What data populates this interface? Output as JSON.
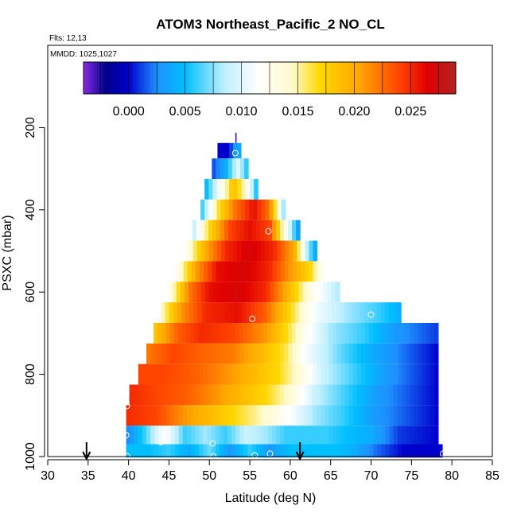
{
  "chart_data": {
    "type": "heatmap",
    "title": "ATOM3 Northeast_Pacific_2 NO_CL",
    "notes": {
      "flights": "Flts: 12,13",
      "dates": "MMDD: 1025,1027"
    },
    "xlabel": "Latitude (deg N)",
    "ylabel": "PSXC (mbar)",
    "xlim": [
      30,
      85
    ],
    "ylim": [
      1000,
      0
    ],
    "x_ticks": [
      "30",
      "35",
      "40",
      "45",
      "50",
      "55",
      "60",
      "65",
      "70",
      "75",
      "80",
      "85"
    ],
    "y_ticks": [
      "200",
      "400",
      "600",
      "800",
      "1000"
    ],
    "colorbar": {
      "range": [
        -0.004,
        0.029
      ],
      "tick_values": [
        0.0,
        0.005,
        0.01,
        0.015,
        0.02,
        0.025
      ],
      "tick_labels": [
        "0.000",
        "0.005",
        "0.010",
        "0.015",
        "0.020",
        "0.025"
      ],
      "bands": [
        -0.0025,
        0.0,
        0.0025,
        0.005,
        0.0075,
        0.01,
        0.0125,
        0.015,
        0.0175,
        0.02,
        0.0225,
        0.025,
        0.0275
      ],
      "colors": [
        "#8a2be2",
        "#00008b",
        "#0000cd",
        "#1e90ff",
        "#00bfff",
        "#bfefff",
        "#ffffff",
        "#fffacd",
        "#ffd700",
        "#ffa500",
        "#ff4500",
        "#e00000",
        "#b22222"
      ]
    },
    "rows": [
      {
        "p": 225,
        "lat_min": 53.2,
        "lat_max": 53.3,
        "profile": [
          [
            53.2,
            -0.003
          ],
          [
            53.3,
            -0.003
          ]
        ]
      },
      {
        "p": 250,
        "lat_min": 51.0,
        "lat_max": 53.9,
        "profile": [
          [
            51.0,
            0.0
          ],
          [
            52.5,
            0.0
          ],
          [
            53.0,
            0.003
          ],
          [
            53.9,
            0.004
          ]
        ]
      },
      {
        "p": 300,
        "lat_min": 50.3,
        "lat_max": 54.8,
        "profile": [
          [
            50.3,
            0.001
          ],
          [
            52.0,
            0.004
          ],
          [
            53.5,
            0.01
          ],
          [
            54.8,
            0.005
          ]
        ]
      },
      {
        "p": 350,
        "lat_min": 49.4,
        "lat_max": 56.0,
        "profile": [
          [
            49.4,
            0.004
          ],
          [
            51.5,
            0.012
          ],
          [
            53.0,
            0.019
          ],
          [
            54.5,
            0.014
          ],
          [
            56.0,
            0.004
          ]
        ]
      },
      {
        "p": 400,
        "lat_min": 48.9,
        "lat_max": 59.4,
        "profile": [
          [
            48.9,
            0.005
          ],
          [
            51.0,
            0.016
          ],
          [
            53.0,
            0.022
          ],
          [
            55.5,
            0.026
          ],
          [
            57.5,
            0.022
          ],
          [
            59.4,
            0.006
          ]
        ]
      },
      {
        "p": 450,
        "lat_min": 47.9,
        "lat_max": 61.2,
        "profile": [
          [
            47.9,
            0.008
          ],
          [
            50.0,
            0.017
          ],
          [
            52.5,
            0.024
          ],
          [
            55.0,
            0.026
          ],
          [
            57.5,
            0.024
          ],
          [
            59.5,
            0.012
          ],
          [
            61.2,
            0.002
          ]
        ]
      },
      {
        "p": 500,
        "lat_min": 47.0,
        "lat_max": 63.3,
        "profile": [
          [
            47.0,
            0.012
          ],
          [
            49.5,
            0.02
          ],
          [
            52.0,
            0.025
          ],
          [
            55.0,
            0.027
          ],
          [
            58.0,
            0.025
          ],
          [
            60.5,
            0.02
          ],
          [
            62.0,
            0.009
          ],
          [
            63.3,
            0.003
          ]
        ]
      },
      {
        "p": 550,
        "lat_min": 45.8,
        "lat_max": 64.3,
        "profile": [
          [
            45.8,
            0.012
          ],
          [
            48.5,
            0.021
          ],
          [
            51.0,
            0.026
          ],
          [
            54.5,
            0.027
          ],
          [
            57.5,
            0.025
          ],
          [
            60.0,
            0.021
          ],
          [
            62.5,
            0.017
          ],
          [
            64.3,
            0.011
          ]
        ]
      },
      {
        "p": 600,
        "lat_min": 44.9,
        "lat_max": 66.1,
        "profile": [
          [
            44.9,
            0.012
          ],
          [
            47.5,
            0.022
          ],
          [
            50.0,
            0.026
          ],
          [
            53.5,
            0.027
          ],
          [
            57.0,
            0.025
          ],
          [
            59.5,
            0.02
          ],
          [
            62.5,
            0.013
          ],
          [
            66.1,
            0.008
          ]
        ]
      },
      {
        "p": 650,
        "lat_min": 44.0,
        "lat_max": 73.7,
        "profile": [
          [
            44.0,
            0.014
          ],
          [
            46.5,
            0.021
          ],
          [
            49.5,
            0.025
          ],
          [
            53.5,
            0.026
          ],
          [
            57.0,
            0.023
          ],
          [
            60.0,
            0.017
          ],
          [
            63.0,
            0.011
          ],
          [
            67.0,
            0.008
          ],
          [
            71.0,
            0.006
          ],
          [
            73.7,
            0.004
          ]
        ]
      },
      {
        "p": 700,
        "lat_min": 43.1,
        "lat_max": 78.3,
        "profile": [
          [
            43.1,
            0.018
          ],
          [
            46.0,
            0.023
          ],
          [
            49.0,
            0.025
          ],
          [
            53.0,
            0.024
          ],
          [
            57.0,
            0.021
          ],
          [
            60.0,
            0.016
          ],
          [
            62.0,
            0.012
          ],
          [
            65.0,
            0.008
          ],
          [
            69.0,
            0.006
          ],
          [
            73.0,
            0.003
          ],
          [
            78.3,
            0.001
          ]
        ]
      },
      {
        "p": 750,
        "lat_min": 42.2,
        "lat_max": 78.3,
        "profile": [
          [
            42.2,
            0.022
          ],
          [
            45.5,
            0.024
          ],
          [
            49.0,
            0.023
          ],
          [
            53.0,
            0.022
          ],
          [
            56.5,
            0.019
          ],
          [
            59.5,
            0.016
          ],
          [
            62.0,
            0.011
          ],
          [
            66.0,
            0.007
          ],
          [
            70.0,
            0.004
          ],
          [
            74.0,
            0.002
          ],
          [
            78.3,
            0.0
          ]
        ]
      },
      {
        "p": 800,
        "lat_min": 41.2,
        "lat_max": 78.3,
        "profile": [
          [
            41.2,
            0.024
          ],
          [
            44.5,
            0.024
          ],
          [
            48.5,
            0.023
          ],
          [
            52.5,
            0.021
          ],
          [
            55.5,
            0.019
          ],
          [
            58.5,
            0.017
          ],
          [
            61.0,
            0.014
          ],
          [
            64.0,
            0.009
          ],
          [
            68.0,
            0.006
          ],
          [
            72.0,
            0.003
          ],
          [
            78.3,
            0.0
          ]
        ]
      },
      {
        "p": 850,
        "lat_min": 40.1,
        "lat_max": 78.3,
        "profile": [
          [
            40.1,
            0.025
          ],
          [
            43.5,
            0.024
          ],
          [
            47.5,
            0.023
          ],
          [
            51.0,
            0.021
          ],
          [
            54.0,
            0.019
          ],
          [
            57.0,
            0.017
          ],
          [
            60.0,
            0.014
          ],
          [
            63.0,
            0.009
          ],
          [
            67.0,
            0.006
          ],
          [
            71.0,
            0.003
          ],
          [
            78.3,
            0.0
          ]
        ]
      },
      {
        "p": 900,
        "lat_min": 39.7,
        "lat_max": 78.3,
        "profile": [
          [
            39.7,
            0.025
          ],
          [
            43.5,
            0.024
          ],
          [
            47.0,
            0.021
          ],
          [
            50.0,
            0.019
          ],
          [
            53.0,
            0.017
          ],
          [
            56.0,
            0.015
          ],
          [
            59.5,
            0.012
          ],
          [
            63.0,
            0.008
          ],
          [
            66.5,
            0.006
          ],
          [
            70.5,
            0.003
          ],
          [
            78.3,
            0.0
          ]
        ]
      },
      {
        "p": 950,
        "lat_min": 39.7,
        "lat_max": 78.3,
        "profile": [
          [
            39.7,
            0.002
          ],
          [
            42.0,
            0.006
          ],
          [
            44.5,
            0.012
          ],
          [
            47.0,
            0.006
          ],
          [
            49.5,
            0.008
          ],
          [
            52.0,
            0.006
          ],
          [
            54.5,
            0.009
          ],
          [
            57.0,
            0.008
          ],
          [
            59.5,
            0.006
          ],
          [
            62.0,
            0.006
          ],
          [
            64.5,
            0.006
          ],
          [
            67.0,
            0.005
          ],
          [
            70.0,
            0.004
          ],
          [
            73.5,
            0.001
          ],
          [
            78.3,
            0.0
          ]
        ]
      },
      {
        "p": 990,
        "lat_min": 39.7,
        "lat_max": 78.8,
        "profile": [
          [
            39.7,
            0.005
          ],
          [
            42.5,
            0.005
          ],
          [
            45.0,
            0.006
          ],
          [
            47.5,
            0.004
          ],
          [
            50.0,
            0.007
          ],
          [
            52.5,
            0.003
          ],
          [
            55.0,
            0.006
          ],
          [
            57.5,
            0.003
          ],
          [
            60.0,
            0.005
          ],
          [
            63.0,
            0.005
          ],
          [
            66.0,
            0.005
          ],
          [
            68.0,
            0.004
          ],
          [
            70.5,
            0.002
          ],
          [
            74.0,
            0.0
          ],
          [
            78.8,
            0.0
          ]
        ]
      }
    ],
    "flight_markers": [
      [
        53.2,
        262
      ],
      [
        57.3,
        452
      ],
      [
        55.3,
        665
      ],
      [
        70.0,
        655
      ],
      [
        78.0,
        665
      ],
      [
        39.8,
        877
      ],
      [
        39.7,
        948
      ],
      [
        44.0,
        965
      ],
      [
        50.4,
        968
      ],
      [
        39.8,
        999
      ],
      [
        50.5,
        1000
      ],
      [
        55.6,
        997
      ],
      [
        57.5,
        993
      ],
      [
        78.9,
        993
      ]
    ],
    "arrows": [
      34.8,
      61.2
    ]
  }
}
